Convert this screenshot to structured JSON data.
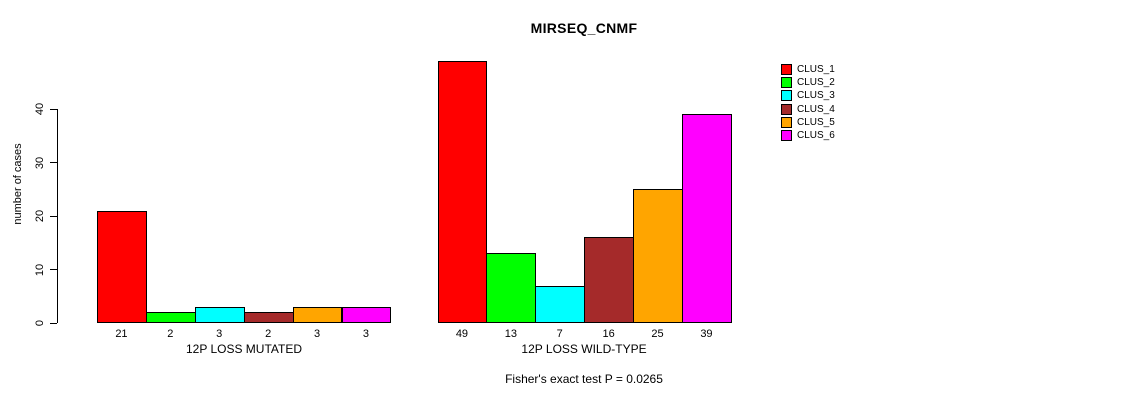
{
  "title": "MIRSEQ_CNMF",
  "ylabel": "number of cases",
  "annotation": "Fisher's exact test P = 0.0265",
  "legend": {
    "entries": [
      {
        "label": "CLUS_1",
        "color": "#FF0000"
      },
      {
        "label": "CLUS_2",
        "color": "#00FF00"
      },
      {
        "label": "CLUS_3",
        "color": "#00FFFF"
      },
      {
        "label": "CLUS_4",
        "color": "#A52A2A"
      },
      {
        "label": "CLUS_5",
        "color": "#FFA500"
      },
      {
        "label": "CLUS_6",
        "color": "#FF00FF"
      }
    ]
  },
  "chart_data": [
    {
      "type": "bar",
      "title": "MIRSEQ_CNMF",
      "group_label": "12P LOSS MUTATED",
      "categories": [
        "CLUS_1",
        "CLUS_2",
        "CLUS_3",
        "CLUS_4",
        "CLUS_5",
        "CLUS_6"
      ],
      "values": [
        21,
        2,
        3,
        2,
        3,
        3
      ],
      "colors": [
        "#FF0000",
        "#00FF00",
        "#00FFFF",
        "#A52A2A",
        "#FFA500",
        "#FF00FF"
      ],
      "ylabel": "number of cases",
      "xlabel": "12P LOSS MUTATED",
      "ylim": [
        0,
        40
      ],
      "yticks": [
        0,
        10,
        20,
        30,
        40
      ],
      "grid": false,
      "legend_position": "top-right-outside"
    },
    {
      "type": "bar",
      "title": "MIRSEQ_CNMF",
      "group_label": "12P LOSS WILD-TYPE",
      "categories": [
        "CLUS_1",
        "CLUS_2",
        "CLUS_3",
        "CLUS_4",
        "CLUS_5",
        "CLUS_6"
      ],
      "values": [
        49,
        13,
        7,
        16,
        25,
        39
      ],
      "colors": [
        "#FF0000",
        "#00FF00",
        "#00FFFF",
        "#A52A2A",
        "#FFA500",
        "#FF00FF"
      ],
      "ylabel": "number of cases",
      "xlabel": "12P LOSS WILD-TYPE",
      "ylim": [
        0,
        40
      ],
      "yticks": [
        0,
        10,
        20,
        30,
        40
      ],
      "grid": false,
      "legend_position": "top-right-outside"
    }
  ]
}
